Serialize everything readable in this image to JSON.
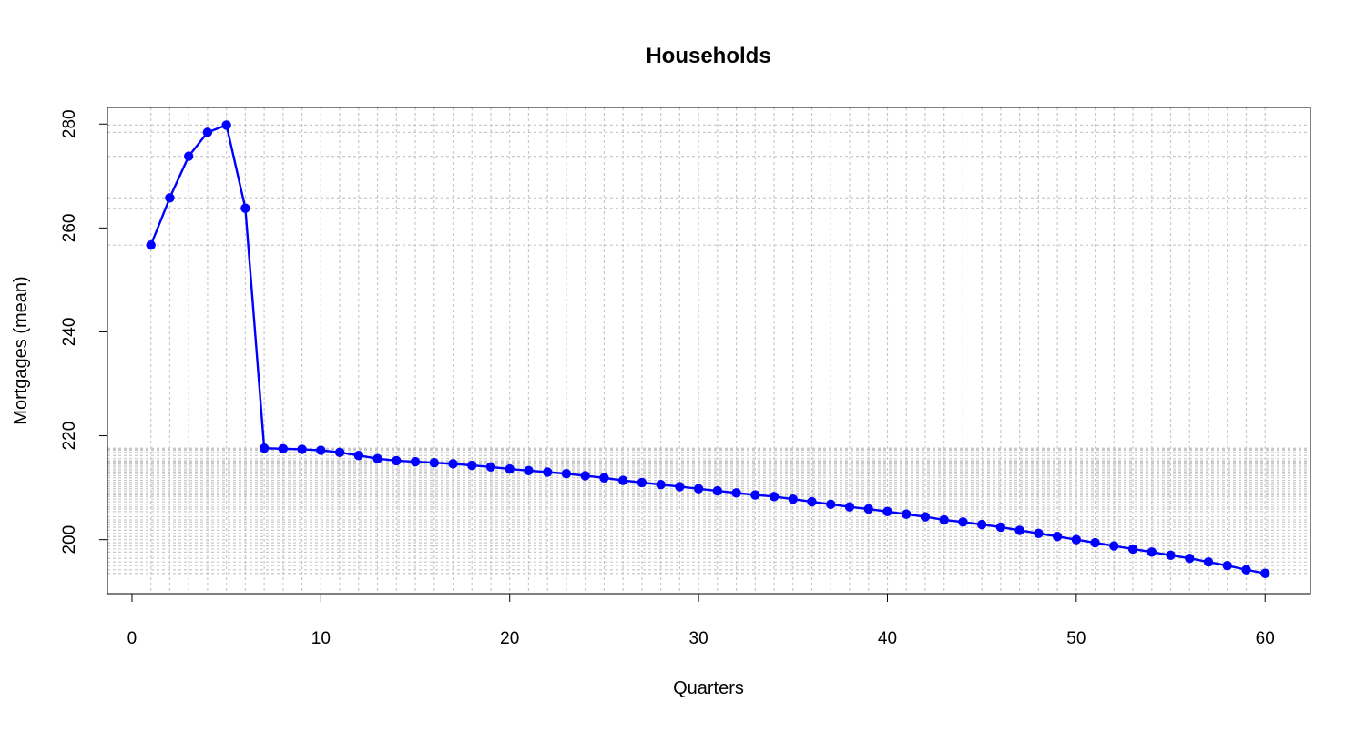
{
  "chart_data": {
    "type": "line",
    "title": "Households",
    "xlabel": "Quarters",
    "ylabel": "Mortgages (mean)",
    "xlim": [
      -1.3,
      62.4
    ],
    "ylim": [
      189.6,
      283.2
    ],
    "x_ticks": [
      0,
      10,
      20,
      30,
      40,
      50,
      60
    ],
    "y_ticks": [
      200,
      220,
      240,
      260,
      280
    ],
    "grid": true,
    "grid_style": "dotted",
    "colors": {
      "series": "#0000ff",
      "grid": "#c9c9c9"
    },
    "series": [
      {
        "x": [
          1,
          2,
          3,
          4,
          5,
          6,
          7,
          8,
          9,
          10,
          11,
          12,
          13,
          14,
          15,
          16,
          17,
          18,
          19,
          20,
          21,
          22,
          23,
          24,
          25,
          26,
          27,
          28,
          29,
          30,
          31,
          32,
          33,
          34,
          35,
          36,
          37,
          38,
          39,
          40,
          41,
          42,
          43,
          44,
          45,
          46,
          47,
          48,
          49,
          50,
          51,
          52,
          53,
          54,
          55,
          56,
          57,
          58,
          59,
          60
        ],
        "values": [
          256.7,
          265.8,
          273.8,
          278.4,
          279.8,
          263.8,
          217.6,
          217.5,
          217.4,
          217.2,
          216.8,
          216.2,
          215.6,
          215.2,
          215.0,
          214.8,
          214.6,
          214.3,
          214.0,
          213.6,
          213.3,
          213.0,
          212.7,
          212.3,
          211.9,
          211.4,
          211.0,
          210.6,
          210.2,
          209.8,
          209.4,
          209.0,
          208.6,
          208.3,
          207.8,
          207.3,
          206.8,
          206.3,
          205.9,
          205.4,
          204.9,
          204.4,
          203.8,
          203.4,
          202.9,
          202.4,
          201.8,
          201.2,
          200.6,
          200.0,
          199.4,
          198.8,
          198.2,
          197.6,
          197.0,
          196.4,
          195.7,
          195.0,
          194.2,
          193.5
        ]
      }
    ]
  }
}
